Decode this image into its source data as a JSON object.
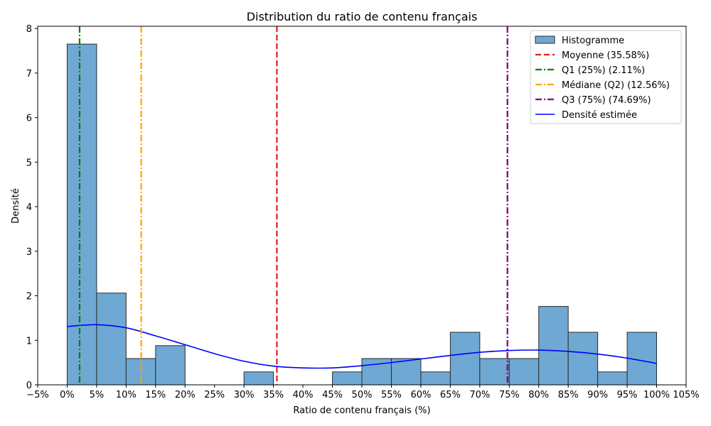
{
  "chart_data": {
    "type": "bar",
    "title": "Distribution du ratio de contenu français",
    "xlabel": "Ratio de contenu français (%)",
    "ylabel": "Densité",
    "xlim": [
      -5,
      105
    ],
    "ylim": [
      0,
      8.05
    ],
    "x_ticks": [
      -5,
      0,
      5,
      10,
      15,
      20,
      25,
      30,
      35,
      40,
      45,
      50,
      55,
      60,
      65,
      70,
      75,
      80,
      85,
      90,
      95,
      100,
      105
    ],
    "x_tick_labels": [
      "−5%",
      "0%",
      "5%",
      "10%",
      "15%",
      "20%",
      "25%",
      "30%",
      "35%",
      "40%",
      "45%",
      "50%",
      "55%",
      "60%",
      "65%",
      "70%",
      "75%",
      "80%",
      "85%",
      "90%",
      "95%",
      "100%",
      "105%"
    ],
    "y_ticks": [
      0,
      1,
      2,
      3,
      4,
      5,
      6,
      7,
      8
    ],
    "y_tick_labels": [
      "0",
      "1",
      "2",
      "3",
      "4",
      "5",
      "6",
      "7",
      "8"
    ],
    "grid": false,
    "legend_position": "top-right",
    "bins": [
      {
        "x0": 0,
        "x1": 5,
        "density": 7.65
      },
      {
        "x0": 5,
        "x1": 10,
        "density": 2.06
      },
      {
        "x0": 10,
        "x1": 15,
        "density": 0.59
      },
      {
        "x0": 15,
        "x1": 20,
        "density": 0.88
      },
      {
        "x0": 20,
        "x1": 25,
        "density": 0
      },
      {
        "x0": 25,
        "x1": 30,
        "density": 0
      },
      {
        "x0": 30,
        "x1": 35,
        "density": 0.29
      },
      {
        "x0": 35,
        "x1": 40,
        "density": 0
      },
      {
        "x0": 40,
        "x1": 45,
        "density": 0
      },
      {
        "x0": 45,
        "x1": 50,
        "density": 0.29
      },
      {
        "x0": 50,
        "x1": 55,
        "density": 0.59
      },
      {
        "x0": 55,
        "x1": 60,
        "density": 0.59
      },
      {
        "x0": 60,
        "x1": 65,
        "density": 0.29
      },
      {
        "x0": 65,
        "x1": 70,
        "density": 1.18
      },
      {
        "x0": 70,
        "x1": 75,
        "density": 0.59
      },
      {
        "x0": 75,
        "x1": 80,
        "density": 0.59
      },
      {
        "x0": 80,
        "x1": 85,
        "density": 1.76
      },
      {
        "x0": 85,
        "x1": 90,
        "density": 1.18
      },
      {
        "x0": 90,
        "x1": 95,
        "density": 0.29
      },
      {
        "x0": 95,
        "x1": 100,
        "density": 1.18
      }
    ],
    "vlines": [
      {
        "name": "Moyenne (35.58%)",
        "x": 35.58,
        "color": "#e31a1c",
        "style": "dashed"
      },
      {
        "name": "Q1 (25%) (2.11%)",
        "x": 2.11,
        "color": "#008000",
        "style": "dashdot"
      },
      {
        "name": "Médiane (Q2) (12.56%)",
        "x": 12.56,
        "color": "#ffa500",
        "style": "dashdot"
      },
      {
        "name": "Q3 (75%) (74.69%)",
        "x": 74.69,
        "color": "#800080",
        "style": "dashdot"
      }
    ],
    "kde": {
      "name": "Densité estimée",
      "color": "#0000ff",
      "x": [
        0,
        5,
        10,
        15,
        20,
        25,
        30,
        35,
        40,
        45,
        50,
        55,
        60,
        65,
        70,
        75,
        80,
        85,
        90,
        95,
        100
      ],
      "y": [
        1.31,
        1.35,
        1.28,
        1.1,
        0.9,
        0.7,
        0.53,
        0.42,
        0.38,
        0.38,
        0.43,
        0.5,
        0.58,
        0.66,
        0.73,
        0.77,
        0.78,
        0.75,
        0.69,
        0.6,
        0.48
      ]
    },
    "legend": [
      {
        "label": "Histogramme",
        "kind": "patch",
        "color": "#6fa8d3"
      },
      {
        "label": "Moyenne (35.58%)",
        "kind": "dashed",
        "color": "#e31a1c"
      },
      {
        "label": "Q1 (25%) (2.11%)",
        "kind": "dashdot",
        "color": "#008000"
      },
      {
        "label": "Médiane (Q2) (12.56%)",
        "kind": "dashdot",
        "color": "#ffa500"
      },
      {
        "label": "Q3 (75%) (74.69%)",
        "kind": "dashdot",
        "color": "#800080"
      },
      {
        "label": "Densité estimée",
        "kind": "line",
        "color": "#0000ff"
      }
    ],
    "bar_color": "#6fa8d3",
    "bar_edge_color": "#2b2b2b"
  }
}
